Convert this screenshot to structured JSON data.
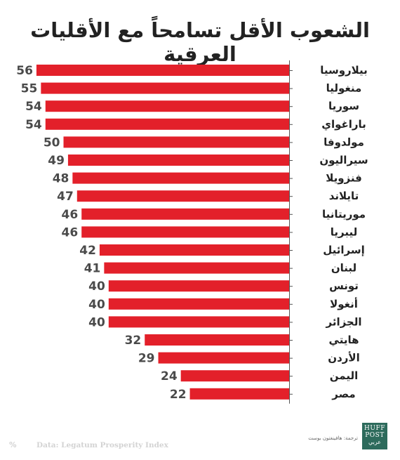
{
  "chart_data": {
    "type": "bar",
    "orientation": "horizontal",
    "title": "الشعوب الأقل تسامحاً مع الأقليات العرقية",
    "categories": [
      "بيلاروسيا",
      "منغوليا",
      "سوريا",
      "باراغواي",
      "مولدوفا",
      "سيراليون",
      "فنزويلا",
      "تايلاند",
      "موريتانيا",
      "ليبريا",
      "إسرائيل",
      "لبنان",
      "تونس",
      "أنغولا",
      "الجزائر",
      "هايتي",
      "الأردن",
      "اليمن",
      "مصر"
    ],
    "values": [
      56,
      55,
      54,
      54,
      50,
      49,
      48,
      47,
      46,
      46,
      42,
      41,
      40,
      40,
      40,
      32,
      29,
      24,
      22
    ],
    "xlim": [
      0,
      58
    ],
    "unit": "%",
    "bar_color": "#e3202a",
    "grid": false,
    "source": "Data: Legatum Prosperity Index"
  },
  "branding": {
    "credit": "ترجمة: هافينغتون بوست",
    "logo_line1": "HUFF",
    "logo_line2": "POST",
    "logo_line3": "عربي"
  }
}
